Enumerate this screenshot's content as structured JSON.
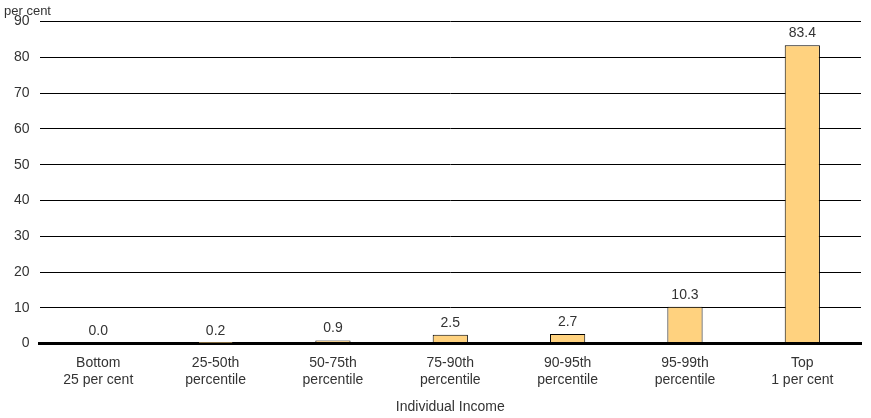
{
  "chart_data": {
    "type": "bar",
    "y_label": "per cent",
    "x_label": "Individual Income",
    "categories": [
      [
        "Bottom",
        "25 per cent"
      ],
      [
        "25-50th",
        "percentile"
      ],
      [
        "50-75th",
        "percentile"
      ],
      [
        "75-90th",
        "percentile"
      ],
      [
        "90-95th",
        "percentile"
      ],
      [
        "95-99th",
        "percentile"
      ],
      [
        "Top",
        "1 per cent"
      ]
    ],
    "values": [
      0.0,
      0.2,
      0.9,
      2.5,
      2.7,
      10.3,
      83.4
    ],
    "value_labels": [
      "0.0",
      "0.2",
      "0.9",
      "2.5",
      "2.7",
      "10.3",
      "83.4"
    ],
    "color": "#FFD27F",
    "ylim": [
      0,
      90
    ],
    "yticks": [
      0,
      10,
      20,
      30,
      40,
      50,
      60,
      70,
      80,
      90
    ],
    "grid": true,
    "data_labels": true
  }
}
